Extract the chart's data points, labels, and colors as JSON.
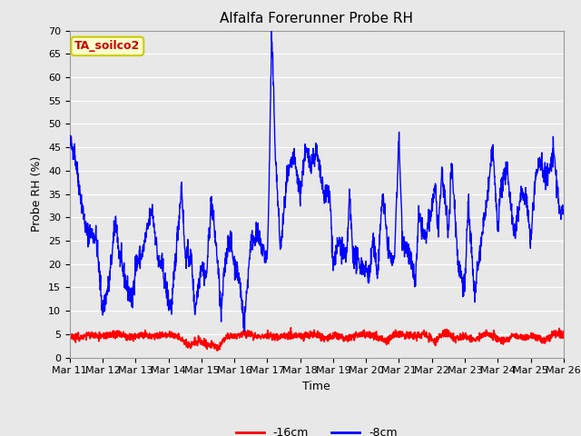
{
  "title": "Alfalfa Forerunner Probe RH",
  "xlabel": "Time",
  "ylabel": "Probe RH (%)",
  "ylim": [
    0,
    70
  ],
  "xlim_days": [
    11,
    26
  ],
  "xtick_labels": [
    "Mar 11",
    "Mar 12",
    "Mar 13",
    "Mar 14",
    "Mar 15",
    "Mar 16",
    "Mar 17",
    "Mar 18",
    "Mar 19",
    "Mar 20",
    "Mar 21",
    "Mar 22",
    "Mar 23",
    "Mar 24",
    "Mar 25",
    "Mar 26"
  ],
  "legend_label_red": "-16cm",
  "legend_label_blue": "-8cm",
  "annotation_text": "TA_soilco2",
  "annotation_bg": "#ffffcc",
  "annotation_border": "#cccc00",
  "annotation_text_color": "#cc0000",
  "blue_color": "#0000ff",
  "red_color": "#ff0000",
  "fig_bg_color": "#e8e8e8",
  "plot_bg_color": "#e8e8e8",
  "grid_color": "#ffffff",
  "title_fontsize": 11,
  "axis_label_fontsize": 9,
  "tick_fontsize": 8,
  "legend_fontsize": 9,
  "blue_anchors_day": [
    0,
    0.15,
    0.3,
    0.5,
    0.8,
    1.0,
    1.2,
    1.4,
    1.5,
    1.7,
    1.9,
    2.0,
    2.2,
    2.5,
    2.7,
    2.8,
    3.0,
    3.1,
    3.2,
    3.4,
    3.5,
    3.7,
    3.8,
    4.0,
    4.15,
    4.3,
    4.5,
    4.6,
    4.7,
    4.85,
    5.0,
    5.15,
    5.3,
    5.5,
    5.7,
    6.0,
    6.05,
    6.1,
    6.13,
    6.17,
    6.25,
    6.4,
    6.6,
    6.8,
    7.0,
    7.15,
    7.3,
    7.5,
    7.7,
    7.9,
    8.0,
    8.2,
    8.4,
    8.5,
    8.6,
    8.8,
    9.0,
    9.1,
    9.2,
    9.35,
    9.5,
    9.7,
    9.85,
    10.0,
    10.1,
    10.3,
    10.5,
    10.6,
    10.8,
    11.0,
    11.1,
    11.2,
    11.3,
    11.5,
    11.6,
    11.8,
    12.0,
    12.1,
    12.3,
    12.5,
    12.7,
    12.85,
    13.0,
    13.1,
    13.3,
    13.5,
    13.7,
    13.85,
    14.0,
    14.15,
    14.3,
    14.5,
    14.7,
    14.9,
    15.0
  ],
  "blue_anchors_val": [
    46,
    44,
    36,
    27,
    26,
    10,
    16,
    30,
    22,
    16,
    12,
    20,
    22,
    32,
    20,
    20,
    12,
    11,
    20,
    37,
    22,
    21,
    10,
    20,
    17,
    34,
    20,
    9,
    19,
    26,
    20,
    17,
    7,
    25,
    26,
    21,
    35,
    55,
    69,
    62,
    43,
    23,
    38,
    43,
    35,
    44,
    42,
    44,
    35,
    35,
    20,
    25,
    20,
    35,
    22,
    20,
    19,
    17,
    25,
    18,
    35,
    22,
    20,
    47,
    26,
    22,
    16,
    30,
    25,
    32,
    37,
    26,
    40,
    27,
    42,
    20,
    15,
    33,
    13,
    25,
    35,
    45,
    27,
    37,
    40,
    26,
    35,
    35,
    25,
    39,
    42,
    38,
    44,
    30,
    32
  ],
  "red_anchors_day": [
    0,
    0.3,
    0.6,
    0.9,
    1.2,
    1.5,
    1.8,
    2.1,
    2.4,
    2.7,
    3.0,
    3.3,
    3.6,
    3.9,
    4.2,
    4.5,
    4.8,
    5.1,
    5.4,
    5.7,
    6.0,
    6.3,
    6.6,
    6.9,
    7.2,
    7.5,
    7.8,
    8.1,
    8.4,
    8.7,
    9.0,
    9.3,
    9.6,
    9.9,
    10.2,
    10.5,
    10.8,
    11.1,
    11.4,
    11.7,
    12.0,
    12.3,
    12.6,
    12.9,
    13.2,
    13.5,
    13.8,
    14.1,
    14.4,
    14.7,
    15.0
  ],
  "red_anchors_val": [
    4.8,
    4.2,
    5.0,
    4.5,
    4.8,
    5.0,
    4.3,
    4.8,
    4.5,
    4.8,
    5.0,
    4.5,
    2.5,
    3.5,
    2.8,
    2.2,
    4.5,
    4.8,
    5.0,
    4.5,
    4.8,
    4.2,
    5.0,
    4.5,
    4.8,
    5.0,
    4.2,
    4.8,
    4.0,
    5.0,
    5.0,
    4.5,
    3.5,
    5.0,
    4.8,
    4.5,
    5.0,
    3.5,
    5.5,
    4.0,
    4.5,
    3.8,
    5.0,
    4.5,
    3.5,
    5.0,
    4.2,
    4.8,
    3.5,
    5.0,
    5.0
  ]
}
